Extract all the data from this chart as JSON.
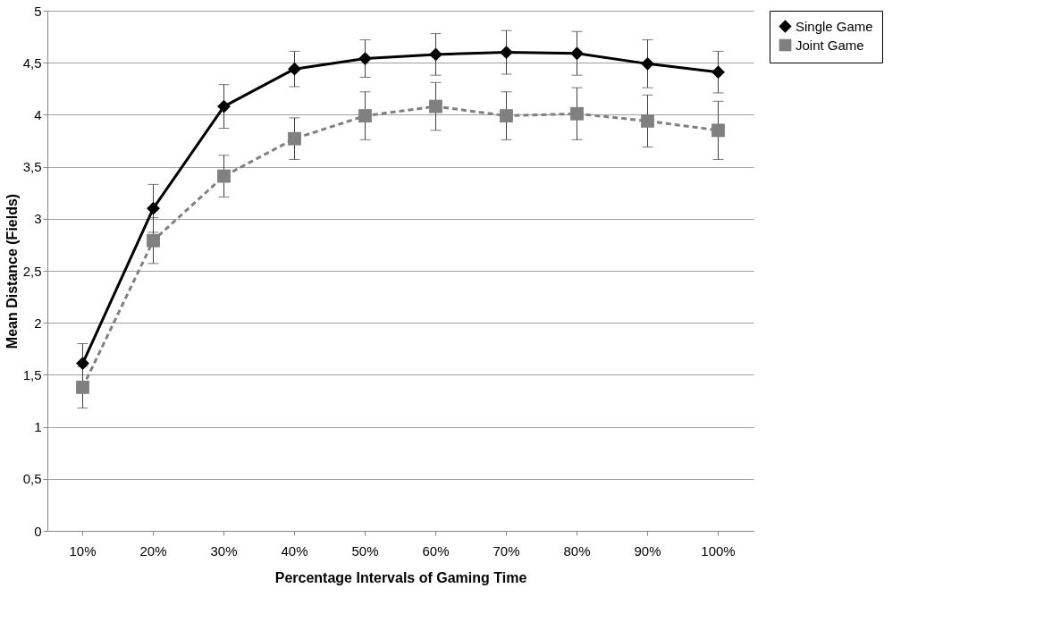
{
  "chart_data": {
    "type": "line",
    "xlabel": "Percentage Intervals of Gaming Time",
    "ylabel": "Mean Distance (Fields)",
    "categories": [
      "10%",
      "20%",
      "30%",
      "40%",
      "50%",
      "60%",
      "70%",
      "80%",
      "90%",
      "100%"
    ],
    "series": [
      {
        "name": "Single Game",
        "color": "#000000",
        "marker": "diamond",
        "line_style": "solid",
        "values": [
          1.61,
          3.1,
          4.08,
          4.44,
          4.54,
          4.58,
          4.6,
          4.59,
          4.49,
          4.41
        ],
        "errors": [
          0.19,
          0.23,
          0.21,
          0.17,
          0.18,
          0.2,
          0.21,
          0.21,
          0.23,
          0.2
        ]
      },
      {
        "name": "Joint Game",
        "color": "#808080",
        "marker": "square",
        "line_style": "dashed",
        "values": [
          1.38,
          2.79,
          3.41,
          3.77,
          3.99,
          4.08,
          3.99,
          4.01,
          3.94,
          3.85
        ],
        "errors": [
          0.2,
          0.22,
          0.2,
          0.2,
          0.23,
          0.23,
          0.23,
          0.25,
          0.25,
          0.28
        ]
      }
    ],
    "ylim": [
      0,
      5
    ],
    "yticks": [
      0,
      {
        "value": 0.5,
        "label": "0,5"
      },
      1,
      {
        "value": 1.5,
        "label": "1,5"
      },
      2,
      {
        "value": 2.5,
        "label": "2,5"
      },
      3,
      {
        "value": 3.5,
        "label": "3,5"
      },
      4,
      {
        "value": 4.5,
        "label": "4,5"
      },
      5
    ],
    "grid": "y",
    "legend": "top right"
  }
}
